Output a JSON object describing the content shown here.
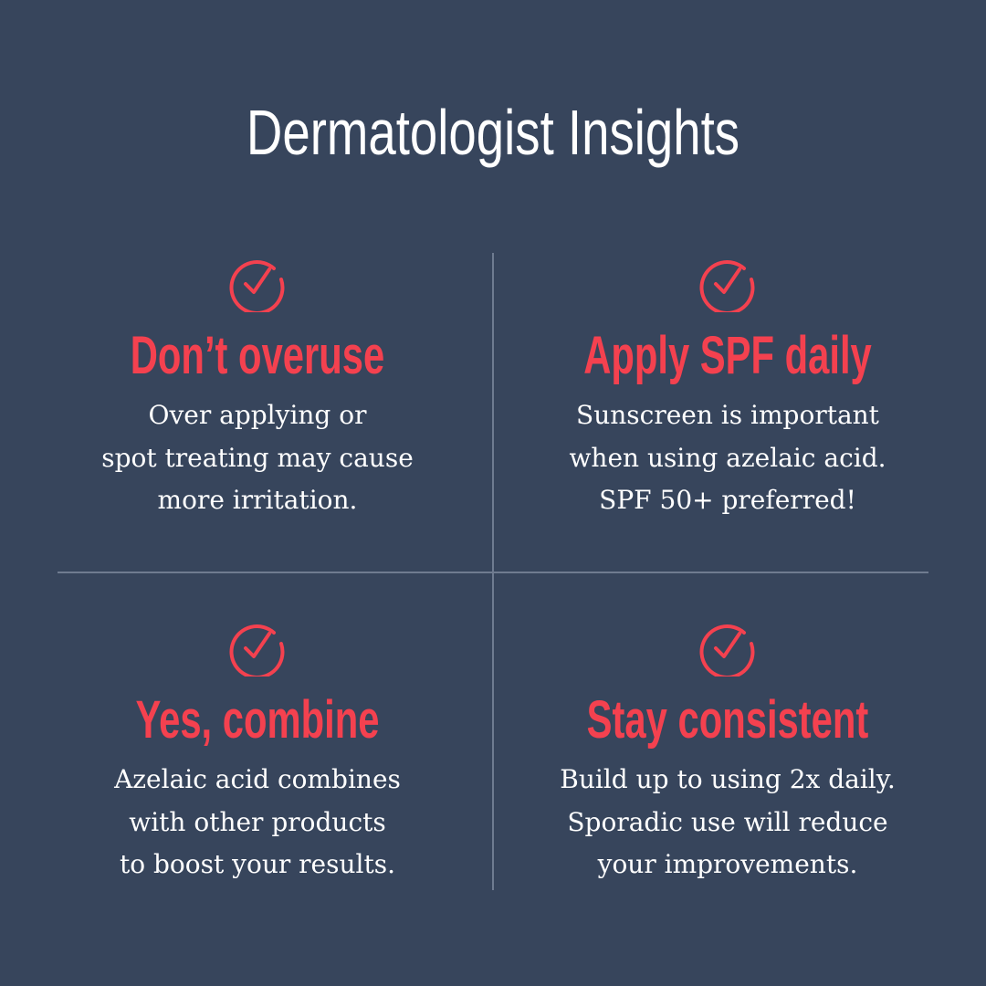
{
  "title": "Dermatologist Insights",
  "colors": {
    "background": "#37455c",
    "accent": "#f4414f",
    "divider": "#6f7b90"
  },
  "icon": "check-circle-icon",
  "tips": [
    {
      "heading": "Don’t overuse",
      "lines": [
        "Over applying or",
        "spot treating may cause",
        "more irritation."
      ]
    },
    {
      "heading": "Apply SPF daily",
      "lines": [
        "Sunscreen is important",
        "when using azelaic acid.",
        "SPF 50+ preferred!"
      ]
    },
    {
      "heading": "Yes, combine",
      "lines": [
        "Azelaic acid combines",
        "with other products",
        "to boost your results."
      ]
    },
    {
      "heading": "Stay consistent",
      "lines": [
        "Build up to using 2x daily.",
        "Sporadic use will reduce",
        "your improvements."
      ]
    }
  ]
}
